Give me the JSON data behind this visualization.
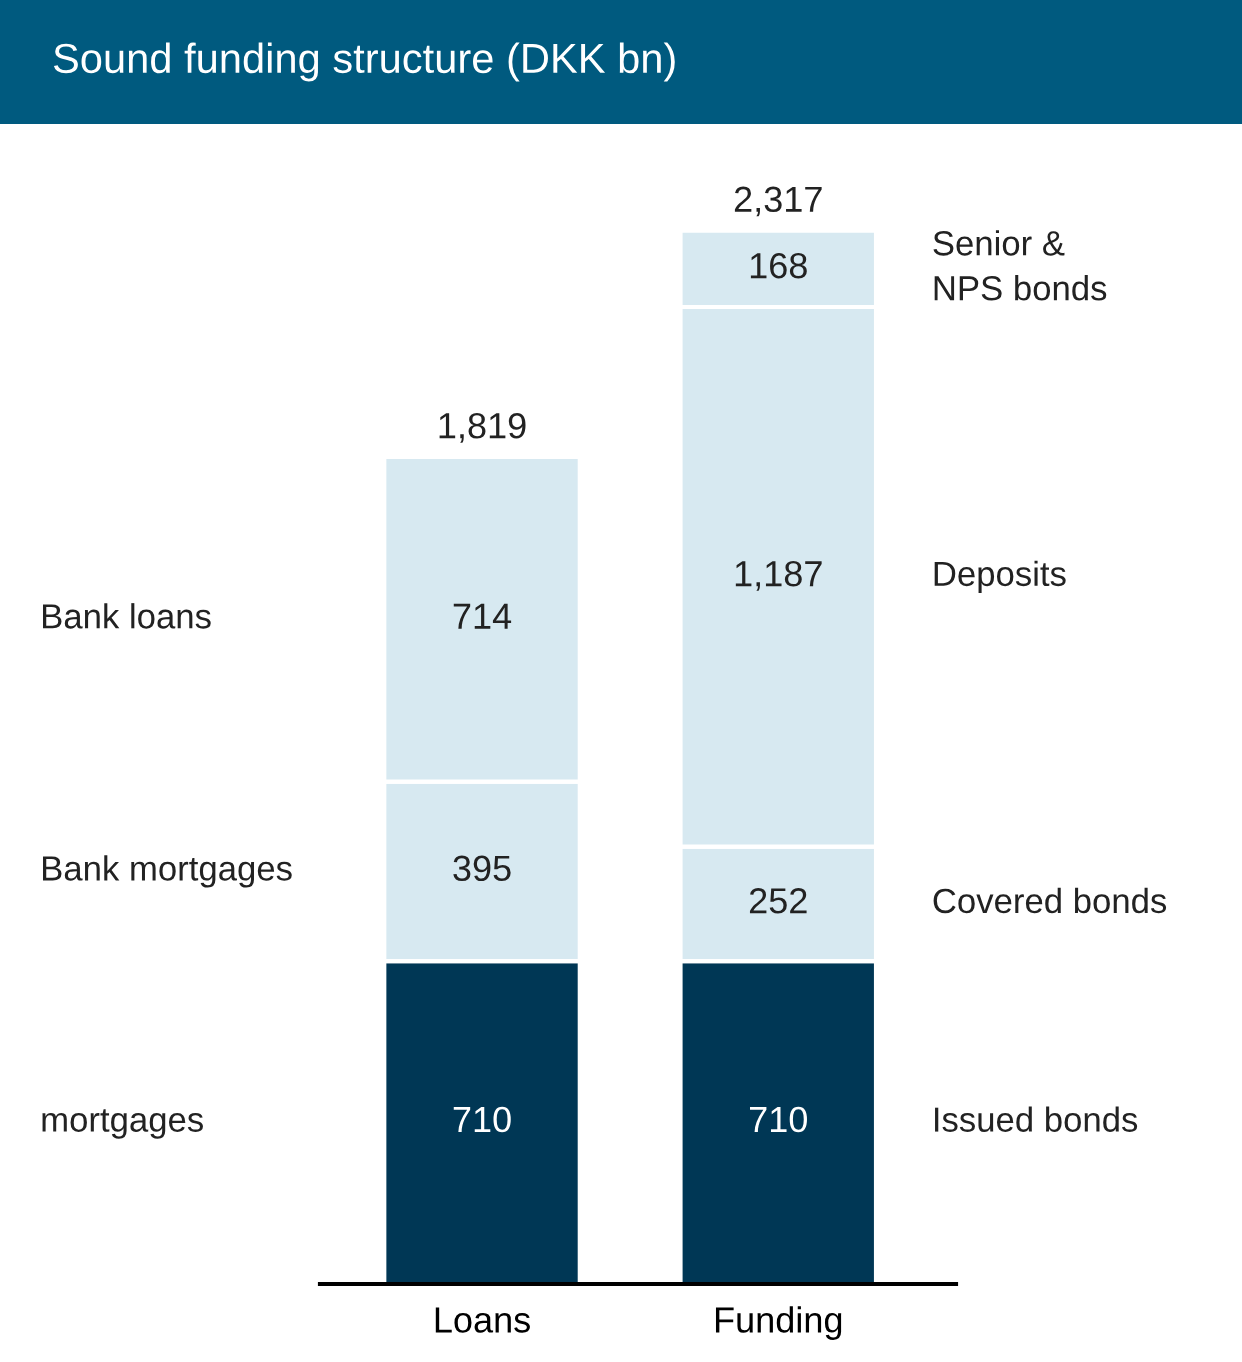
{
  "chart_data": {
    "type": "bar",
    "title": "Sound funding structure (DKK bn)",
    "stacked": true,
    "categories": [
      "Loans",
      "Funding"
    ],
    "series": [
      {
        "color": "#003755",
        "values": [
          710,
          710
        ],
        "value_labels": [
          "710",
          "710"
        ]
      },
      {
        "color": "#d7e9f1",
        "values": [
          395,
          252
        ],
        "value_labels": [
          "395",
          "252"
        ]
      },
      {
        "color": "#d7e9f1",
        "values": [
          714,
          1187
        ],
        "value_labels": [
          "714",
          "1,187"
        ]
      },
      {
        "color": "#d7e9f1",
        "values": [
          null,
          168
        ],
        "value_labels": [
          null,
          "168"
        ]
      }
    ],
    "totals": [
      "1,819",
      "2,317"
    ],
    "tick_labels": "x",
    "grid": false,
    "legend": false,
    "annotations": [
      "mortgages",
      "Bank mortgages",
      "Bank loans",
      "Issued bonds",
      "Covered bonds",
      "Deposits",
      "Senior &\nNPS bonds"
    ]
  }
}
